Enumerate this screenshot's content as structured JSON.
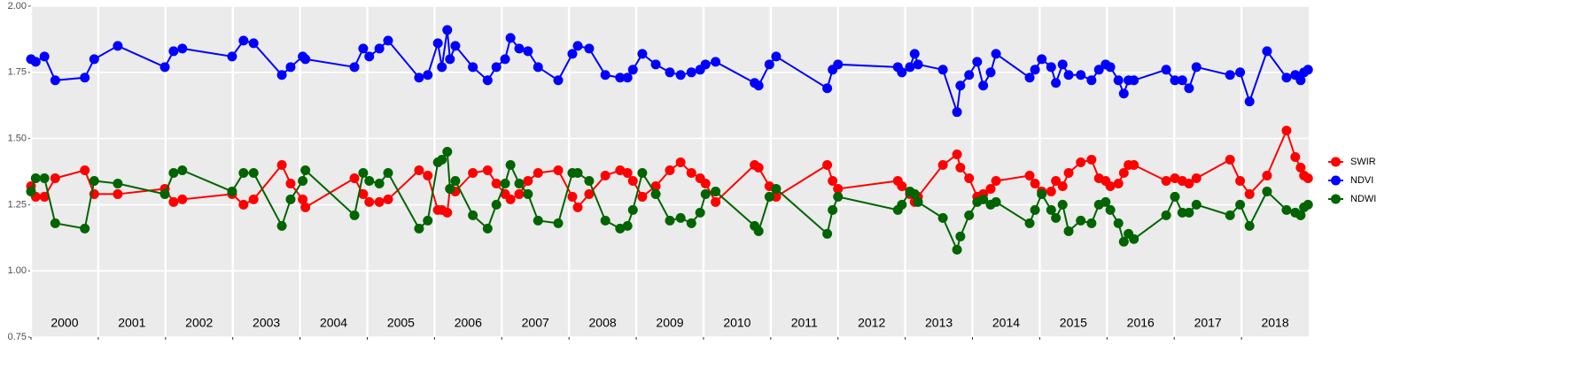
{
  "chart_data": {
    "type": "line",
    "x": [
      2000.0,
      2000.07,
      2000.2,
      2000.36,
      2000.8,
      2000.94,
      2001.29,
      2001.99,
      2002.12,
      2002.25,
      2002.99,
      2003.16,
      2003.31,
      2003.73,
      2003.86,
      2004.04,
      2004.08,
      2004.81,
      2004.94,
      2005.03,
      2005.18,
      2005.31,
      2005.77,
      2005.9,
      2006.05,
      2006.11,
      2006.19,
      2006.23,
      2006.31,
      2006.57,
      2006.79,
      2006.92,
      2007.05,
      2007.13,
      2007.26,
      2007.39,
      2007.54,
      2007.84,
      2008.05,
      2008.13,
      2008.3,
      2008.54,
      2008.76,
      2008.87,
      2008.95,
      2009.09,
      2009.29,
      2009.5,
      2009.66,
      2009.82,
      2009.95,
      2010.03,
      2010.18,
      2010.76,
      2010.82,
      2010.98,
      2011.08,
      2011.84,
      2011.92,
      2012.0,
      2012.89,
      2012.95,
      2013.07,
      2013.14,
      2013.19,
      2013.56,
      2013.77,
      2013.82,
      2013.95,
      2014.07,
      2014.16,
      2014.27,
      2014.35,
      2014.85,
      2014.93,
      2015.03,
      2015.17,
      2015.24,
      2015.34,
      2015.43,
      2015.61,
      2015.77,
      2015.88,
      2015.98,
      2016.05,
      2016.17,
      2016.25,
      2016.32,
      2016.4,
      2016.88,
      2017.01,
      2017.12,
      2017.22,
      2017.33,
      2017.83,
      2017.98,
      2018.12,
      2018.38,
      2018.67,
      2018.8,
      2018.88,
      2018.93,
      2018.99
    ],
    "series": [
      {
        "name": "SWIR",
        "color": "#ff0000",
        "values": [
          1.32,
          1.28,
          1.28,
          1.35,
          1.38,
          1.29,
          1.29,
          1.31,
          1.26,
          1.27,
          1.29,
          1.25,
          1.27,
          1.4,
          1.33,
          1.27,
          1.24,
          1.35,
          1.29,
          1.26,
          1.26,
          1.27,
          1.38,
          1.36,
          1.23,
          1.23,
          1.22,
          1.31,
          1.3,
          1.37,
          1.38,
          1.33,
          1.29,
          1.27,
          1.29,
          1.34,
          1.37,
          1.38,
          1.28,
          1.24,
          1.29,
          1.36,
          1.38,
          1.37,
          1.34,
          1.28,
          1.32,
          1.38,
          1.41,
          1.37,
          1.35,
          1.33,
          1.26,
          1.4,
          1.39,
          1.32,
          1.28,
          1.4,
          1.34,
          1.31,
          1.34,
          1.32,
          1.29,
          1.26,
          1.28,
          1.4,
          1.44,
          1.39,
          1.35,
          1.28,
          1.29,
          1.31,
          1.34,
          1.36,
          1.33,
          1.3,
          1.3,
          1.34,
          1.32,
          1.37,
          1.41,
          1.42,
          1.35,
          1.34,
          1.32,
          1.33,
          1.37,
          1.4,
          1.4,
          1.34,
          1.35,
          1.34,
          1.33,
          1.35,
          1.42,
          1.34,
          1.29,
          1.36,
          1.53,
          1.43,
          1.39,
          1.36,
          1.35
        ]
      },
      {
        "name": "NDVI",
        "color": "#0000ff",
        "values": [
          1.8,
          1.79,
          1.81,
          1.72,
          1.73,
          1.8,
          1.85,
          1.77,
          1.83,
          1.84,
          1.81,
          1.87,
          1.86,
          1.74,
          1.77,
          1.81,
          1.8,
          1.77,
          1.84,
          1.81,
          1.84,
          1.87,
          1.73,
          1.74,
          1.86,
          1.77,
          1.91,
          1.8,
          1.85,
          1.77,
          1.72,
          1.77,
          1.8,
          1.88,
          1.84,
          1.83,
          1.77,
          1.72,
          1.82,
          1.85,
          1.84,
          1.74,
          1.73,
          1.73,
          1.76,
          1.82,
          1.78,
          1.75,
          1.74,
          1.75,
          1.76,
          1.78,
          1.79,
          1.71,
          1.7,
          1.78,
          1.81,
          1.69,
          1.76,
          1.78,
          1.77,
          1.75,
          1.77,
          1.82,
          1.78,
          1.76,
          1.6,
          1.7,
          1.74,
          1.79,
          1.7,
          1.75,
          1.82,
          1.73,
          1.76,
          1.8,
          1.77,
          1.71,
          1.78,
          1.74,
          1.74,
          1.72,
          1.76,
          1.78,
          1.77,
          1.72,
          1.67,
          1.72,
          1.72,
          1.76,
          1.72,
          1.72,
          1.69,
          1.77,
          1.74,
          1.75,
          1.64,
          1.83,
          1.73,
          1.74,
          1.72,
          1.75,
          1.76
        ]
      },
      {
        "name": "NDWI",
        "color": "#006400",
        "values": [
          1.3,
          1.35,
          1.35,
          1.18,
          1.16,
          1.34,
          1.33,
          1.29,
          1.37,
          1.38,
          1.3,
          1.37,
          1.37,
          1.17,
          1.27,
          1.34,
          1.38,
          1.21,
          1.37,
          1.34,
          1.33,
          1.37,
          1.16,
          1.19,
          1.41,
          1.42,
          1.45,
          1.31,
          1.34,
          1.21,
          1.16,
          1.25,
          1.33,
          1.4,
          1.33,
          1.29,
          1.19,
          1.18,
          1.37,
          1.37,
          1.34,
          1.19,
          1.16,
          1.17,
          1.23,
          1.37,
          1.29,
          1.19,
          1.2,
          1.18,
          1.22,
          1.29,
          1.3,
          1.17,
          1.15,
          1.28,
          1.31,
          1.14,
          1.23,
          1.28,
          1.23,
          1.25,
          1.3,
          1.29,
          1.26,
          1.2,
          1.08,
          1.13,
          1.21,
          1.26,
          1.27,
          1.25,
          1.26,
          1.18,
          1.23,
          1.29,
          1.23,
          1.2,
          1.25,
          1.15,
          1.19,
          1.18,
          1.25,
          1.26,
          1.23,
          1.18,
          1.11,
          1.14,
          1.12,
          1.21,
          1.28,
          1.22,
          1.22,
          1.25,
          1.21,
          1.25,
          1.17,
          1.3,
          1.23,
          1.22,
          1.21,
          1.24,
          1.25
        ]
      }
    ],
    "xlim": [
      2000,
      2019
    ],
    "xticks": [
      2000,
      2001,
      2002,
      2003,
      2004,
      2005,
      2006,
      2007,
      2008,
      2009,
      2010,
      2011,
      2012,
      2013,
      2014,
      2015,
      2016,
      2017,
      2018
    ],
    "ylim": [
      0.75,
      2.0
    ],
    "yticks": [
      {
        "value": 0.75,
        "label": "0.75"
      },
      {
        "value": 1.0,
        "label": "1.00"
      },
      {
        "value": 1.25,
        "label": "1.25"
      },
      {
        "value": 1.5,
        "label": "1.50"
      },
      {
        "value": 1.75,
        "label": "1.75"
      },
      {
        "value": 2.0,
        "label": "2.00"
      }
    ],
    "grid": true,
    "legend": "right"
  }
}
